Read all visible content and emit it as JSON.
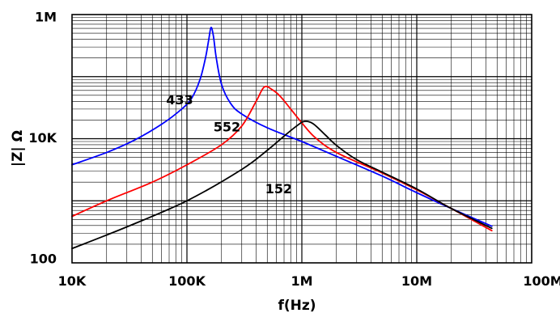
{
  "chart_data": {
    "type": "line",
    "title": "",
    "xlabel": "f(Hz)",
    "ylabel": "|Z| Ω",
    "x_scale": "log",
    "y_scale": "log",
    "xlim": [
      10000,
      100000000
    ],
    "ylim": [
      100,
      1000000
    ],
    "grid": true,
    "legend": "none",
    "x_ticks": [
      {
        "value": 10000,
        "label": "10K"
      },
      {
        "value": 100000,
        "label": "100K"
      },
      {
        "value": 1000000,
        "label": "1M"
      },
      {
        "value": 10000000,
        "label": "10M"
      },
      {
        "value": 100000000,
        "label": "100M"
      }
    ],
    "y_ticks": [
      {
        "value": 100,
        "label": "100"
      },
      {
        "value": 10000,
        "label": "10K"
      },
      {
        "value": 1000000,
        "label": "1M"
      }
    ],
    "series": [
      {
        "name": "433",
        "color": "#0000ff",
        "x": [
          10000,
          20000,
          35000,
          60000,
          90000,
          110000,
          130000,
          145000,
          155000,
          162000,
          170000,
          180000,
          200000,
          240000,
          300000,
          500000,
          1000000,
          2000000,
          5000000,
          10000000,
          20000000,
          45000000
        ],
        "y": [
          3800,
          6000,
          9500,
          17000,
          30000,
          45000,
          90000,
          200000,
          400000,
          620000,
          450000,
          200000,
          75000,
          37000,
          25000,
          15000,
          9000,
          5200,
          2500,
          1350,
          750,
          390
        ]
      },
      {
        "name": "552",
        "color": "#ff0000",
        "x": [
          10000,
          20000,
          50000,
          100000,
          200000,
          300000,
          400000,
          470000,
          550000,
          650000,
          800000,
          1000000,
          1300000,
          2000000,
          5000000,
          10000000,
          20000000,
          45000000
        ],
        "y": [
          560,
          1000,
          2000,
          3800,
          8000,
          16000,
          40000,
          68000,
          62000,
          48000,
          30000,
          18000,
          10500,
          6000,
          2800,
          1500,
          750,
          330
        ]
      },
      {
        "name": "152",
        "color": "#000000",
        "x": [
          10000,
          30000,
          100000,
          300000,
          500000,
          700000,
          900000,
          1050000,
          1250000,
          1600000,
          2000000,
          3000000,
          5000000,
          10000000,
          20000000,
          45000000
        ],
        "y": [
          170,
          380,
          1000,
          3200,
          6500,
          11000,
          16000,
          19000,
          17500,
          11500,
          7800,
          4600,
          2900,
          1550,
          750,
          360
        ]
      }
    ],
    "annotations": [
      {
        "text": "433",
        "x": 66000,
        "y": 41000
      },
      {
        "text": "552",
        "x": 170000,
        "y": 15000
      },
      {
        "text": "152",
        "x": 480000,
        "y": 1500
      }
    ]
  }
}
